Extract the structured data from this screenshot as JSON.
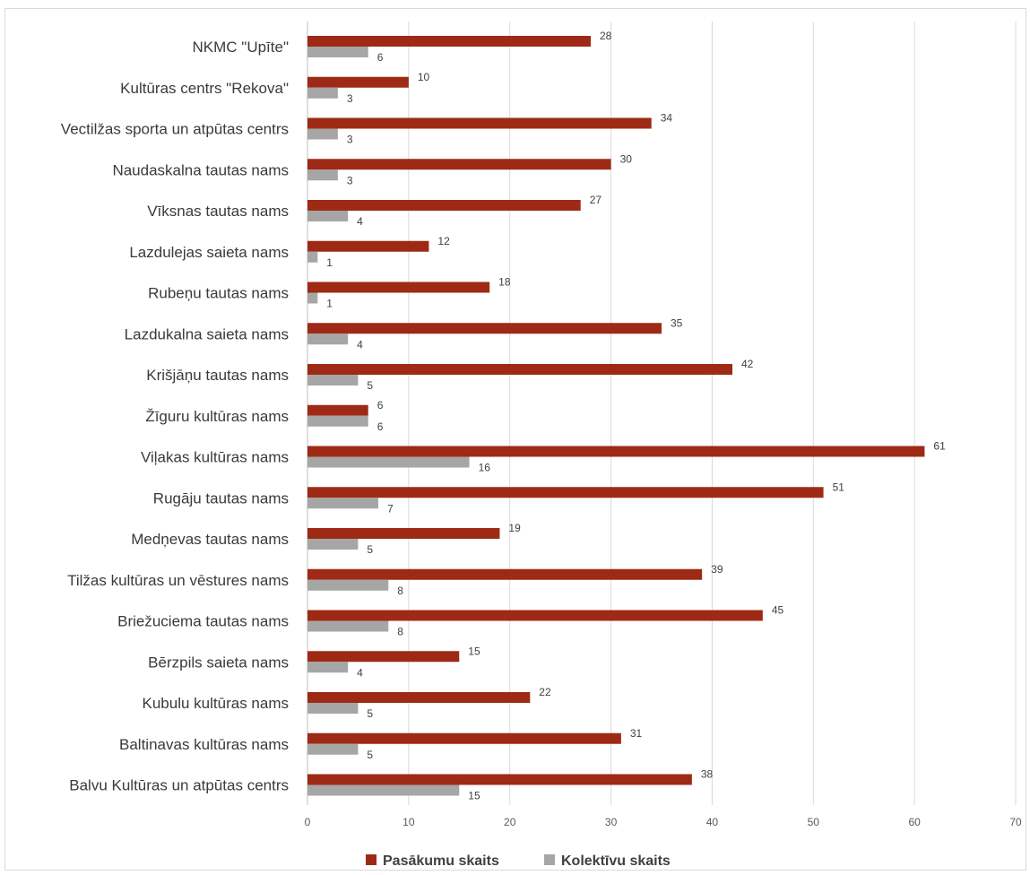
{
  "chart_data": {
    "type": "bar",
    "orientation": "horizontal",
    "categories": [
      "NKMC \"Upīte\"",
      "Kultūras centrs \"Rekova\"",
      "Vectilžas sporta un atpūtas centrs",
      "Naudaskalna tautas nams",
      "Vīksnas tautas nams",
      "Lazdulejas saieta nams",
      "Rubeņu tautas nams",
      "Lazdukalna saieta nams",
      "Krišjāņu tautas nams",
      "Žīguru kultūras nams",
      "Viļakas kultūras nams",
      "Rugāju tautas nams",
      "Medņevas tautas nams",
      "Tilžas kultūras un vēstures nams",
      "Briežuciema tautas nams",
      "Bērzpils saieta nams",
      "Kubulu kultūras nams",
      "Baltinavas kultūras nams",
      "Balvu Kultūras un atpūtas centrs"
    ],
    "series": [
      {
        "name": "Pasākumu skaits",
        "color": "#9e2a16",
        "values": [
          28,
          10,
          34,
          30,
          27,
          12,
          18,
          35,
          42,
          6,
          61,
          51,
          19,
          39,
          45,
          15,
          22,
          31,
          38
        ]
      },
      {
        "name": "Kolektīvu skaits",
        "color": "#a6a6a6",
        "values": [
          6,
          3,
          3,
          3,
          4,
          1,
          1,
          4,
          5,
          6,
          16,
          7,
          5,
          8,
          8,
          4,
          5,
          5,
          15
        ]
      }
    ],
    "xlim": [
      0,
      70
    ],
    "xticks": [
      0,
      10,
      20,
      30,
      40,
      50,
      60,
      70
    ],
    "grid": true,
    "legend_position": "bottom",
    "data_labels": true
  }
}
